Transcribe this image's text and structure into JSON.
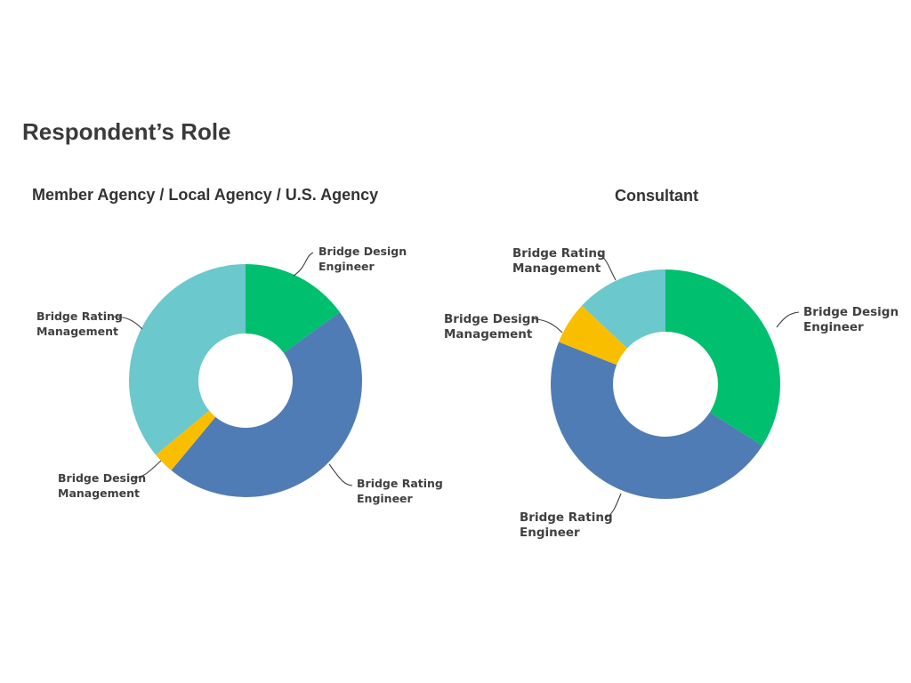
{
  "title": "Respondent’s Role",
  "chart_data": [
    {
      "type": "pie",
      "title": "Member Agency / Local Agency / U.S. Agency",
      "donut": true,
      "slices": [
        {
          "label": "Bridge Design Engineer",
          "label_lines": [
            "Bridge Design",
            "Engineer"
          ],
          "value": 15,
          "color": "#00bf6f"
        },
        {
          "label": "Bridge Rating Engineer",
          "label_lines": [
            "Bridge Rating",
            "Engineer"
          ],
          "value": 46,
          "color": "#507cb6"
        },
        {
          "label": "Bridge Design Management",
          "label_lines": [
            "Bridge Design",
            "Management"
          ],
          "value": 3,
          "color": "#f9be00"
        },
        {
          "label": "Bridge Rating Management",
          "label_lines": [
            "Bridge Rating",
            "Management"
          ],
          "value": 36,
          "color": "#6bc8cd"
        }
      ]
    },
    {
      "type": "pie",
      "title": "Consultant",
      "donut": true,
      "slices": [
        {
          "label": "Bridge Design Engineer",
          "label_lines": [
            "Bridge Design",
            "Engineer"
          ],
          "value": 34,
          "color": "#00bf6f"
        },
        {
          "label": "Bridge Rating Engineer",
          "label_lines": [
            "Bridge Rating",
            "Engineer"
          ],
          "value": 47,
          "color": "#507cb6"
        },
        {
          "label": "Bridge Design Management",
          "label_lines": [
            "Bridge Design",
            "Management"
          ],
          "value": 6,
          "color": "#f9be00"
        },
        {
          "label": "Bridge Rating Management",
          "label_lines": [
            "Bridge Rating",
            "Management"
          ],
          "value": 13,
          "color": "#6bc8cd"
        }
      ]
    }
  ]
}
